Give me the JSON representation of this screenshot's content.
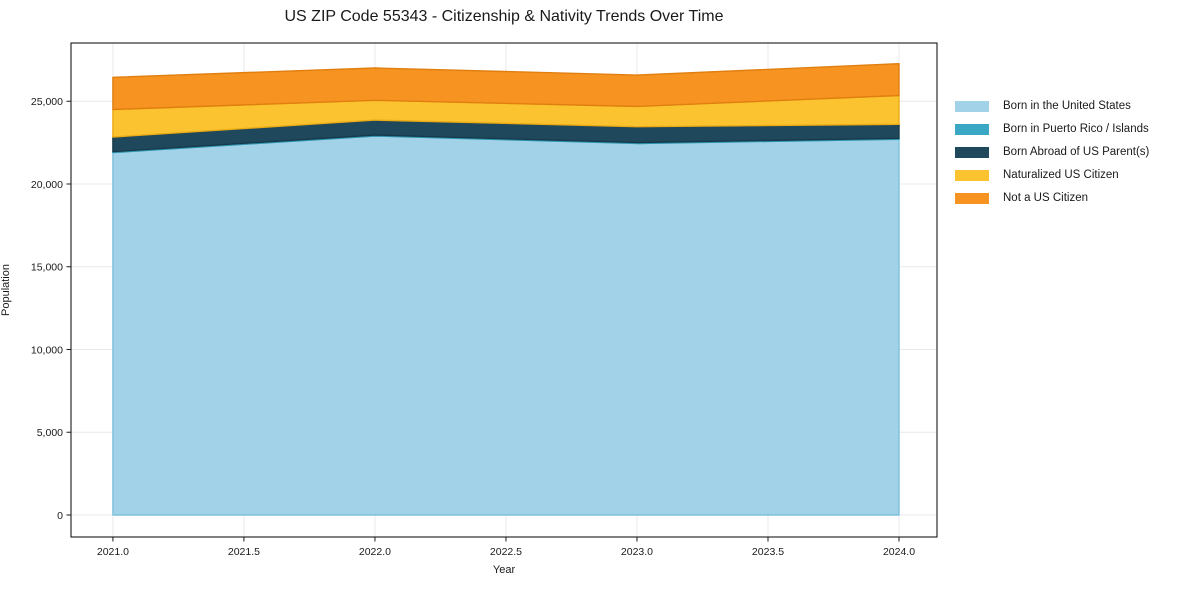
{
  "chart_data": {
    "type": "area",
    "stacked": true,
    "title": "US ZIP Code 55343 - Citizenship & Nativity Trends Over Time",
    "xlabel": "Year",
    "ylabel": "Population",
    "x": [
      2021,
      2022,
      2023,
      2024
    ],
    "series": [
      {
        "name": "Born in the United States",
        "color": "#a1d2e7",
        "edge_color": "#7ec0dd",
        "values": [
          21900,
          22900,
          22450,
          22700
        ]
      },
      {
        "name": "Born in Puerto Rico / Islands",
        "color": "#3aa8c4",
        "edge_color": "#2e93ae",
        "values": [
          60,
          60,
          60,
          60
        ]
      },
      {
        "name": "Born Abroad of US Parent(s)",
        "color": "#20485c",
        "edge_color": "#173a4b",
        "values": [
          880,
          900,
          950,
          850
        ]
      },
      {
        "name": "Naturalized US Citizen",
        "color": "#fcc330",
        "edge_color": "#eaab15",
        "values": [
          1660,
          1200,
          1230,
          1740
        ]
      },
      {
        "name": "Not a US Citizen",
        "color": "#f79421",
        "edge_color": "#e07f10",
        "values": [
          1950,
          1950,
          1890,
          1920
        ]
      }
    ],
    "stack_totals": [
      26450,
      27010,
      26580,
      27270
    ],
    "xlim": [
      2020.84,
      2024.145
    ],
    "ylim": [
      -1330,
      28520
    ],
    "xticks": [
      2021.0,
      2021.5,
      2022.0,
      2022.5,
      2023.0,
      2023.5,
      2024.0
    ],
    "xtick_labels": [
      "2021.0",
      "2021.5",
      "2022.0",
      "2022.5",
      "2023.0",
      "2023.5",
      "2024.0"
    ],
    "yticks": [
      0,
      5000,
      10000,
      15000,
      20000,
      25000
    ],
    "ytick_labels": [
      "0",
      "5,000",
      "10,000",
      "15,000",
      "20,000",
      "25,000"
    ],
    "grid": true,
    "grid_color": "#e9e9e9",
    "spine_color": "#1a1a1a",
    "legend_position": "right"
  }
}
